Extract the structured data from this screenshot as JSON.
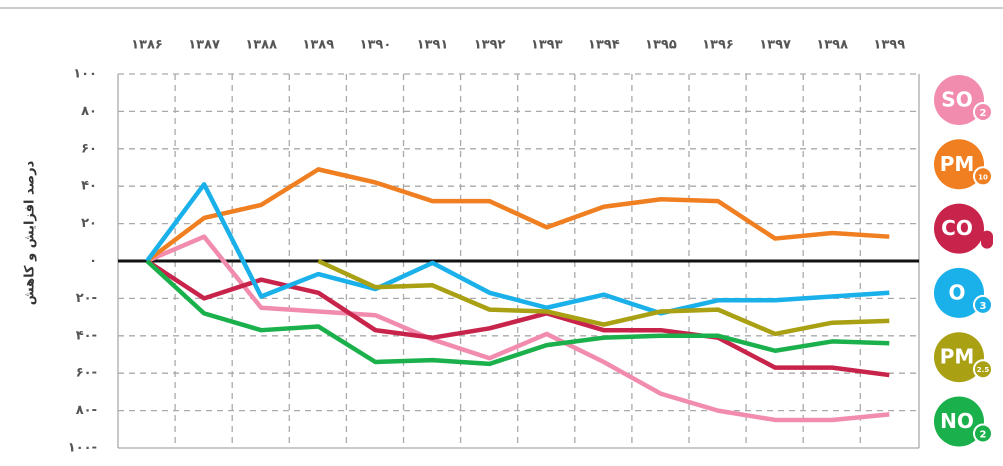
{
  "chart_data": {
    "type": "line",
    "y_label": "درصد افزایش و کاهش",
    "categories": [
      "۱۳۸۶",
      "۱۳۸۷",
      "۱۳۸۸",
      "۱۳۸۹",
      "۱۳۹۰",
      "۱۳۹۱",
      "۱۳۹۲",
      "۱۳۹۳",
      "۱۳۹۴",
      "۱۳۹۵",
      "۱۳۹۶",
      "۱۳۹۷",
      "۱۳۹۸",
      "۱۳۹۹"
    ],
    "ylim": [
      -100,
      100
    ],
    "yticks": [
      {
        "value": 100,
        "label": "۱۰۰"
      },
      {
        "value": 80,
        "label": "۸۰"
      },
      {
        "value": 60,
        "label": "۶۰"
      },
      {
        "value": 40,
        "label": "۴۰"
      },
      {
        "value": 20,
        "label": "۲۰"
      },
      {
        "value": 0,
        "label": "۰"
      },
      {
        "value": -20,
        "label": "۲۰-"
      },
      {
        "value": -40,
        "label": "۴۰-"
      },
      {
        "value": -60,
        "label": "۶۰-"
      },
      {
        "value": -80,
        "label": "۸۰-"
      },
      {
        "value": -100,
        "label": "۱۰۰-"
      }
    ],
    "grid": true,
    "series": [
      {
        "name": "SO",
        "sub": "2",
        "color": "#f28cae",
        "values": [
          0,
          13,
          -25,
          -27,
          -29,
          -42,
          -52,
          -39,
          -54,
          -71,
          -80,
          -85,
          -85,
          -82
        ]
      },
      {
        "name": "PM",
        "sub": "10",
        "color": "#f07f22",
        "values": [
          0,
          23,
          30,
          49,
          42,
          32,
          32,
          18,
          29,
          33,
          32,
          12,
          15,
          13
        ]
      },
      {
        "name": "CO",
        "sub": "",
        "color": "#c8234a",
        "values": [
          0,
          -20,
          -10,
          -17,
          -37,
          -41,
          -36,
          -28,
          -37,
          -37,
          -41,
          -57,
          -57,
          -61
        ]
      },
      {
        "name": "O",
        "sub": "3",
        "color": "#1ab0ea",
        "values": [
          0,
          41,
          -19,
          -7,
          -15,
          -1,
          -17,
          -25,
          -18,
          -28,
          -21,
          -21,
          -19,
          -17
        ]
      },
      {
        "name": "PM",
        "sub": "2.5",
        "color": "#a9a014",
        "values": [
          null,
          null,
          null,
          0,
          -14,
          -13,
          -26,
          -27,
          -34,
          -27,
          -26,
          -39,
          -33,
          -32
        ]
      },
      {
        "name": "NO",
        "sub": "2",
        "color": "#1ab04b",
        "values": [
          0,
          -28,
          -37,
          -35,
          -54,
          -53,
          -55,
          -45,
          -41,
          -40,
          -40,
          -48,
          -43,
          -44
        ]
      }
    ]
  }
}
